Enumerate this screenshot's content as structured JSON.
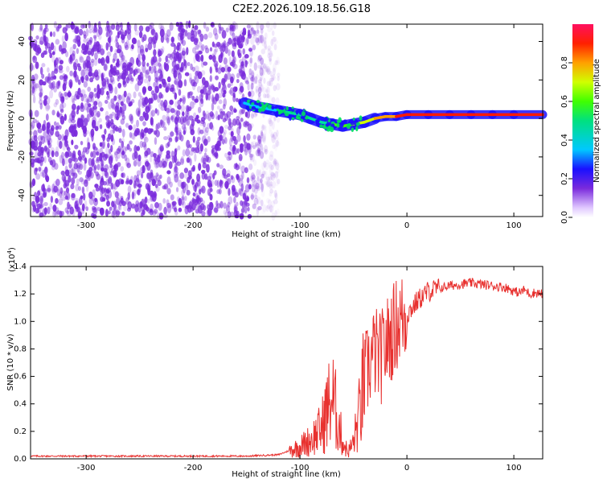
{
  "title": "C2E2.2026.109.18.56.G18",
  "colors": {
    "snr_line": "#e8312f",
    "scatter_purple": "#7a2bdc",
    "band_low": "#1a10ff",
    "band_high": "#ff0000"
  },
  "chart_data": [
    {
      "type": "heatmap",
      "name": "spectrogram",
      "xlabel": "Height of straight line (km)",
      "ylabel": "Frequency (Hz)",
      "xlim": [
        -352,
        127
      ],
      "ylim": [
        -51,
        49
      ],
      "x_ticks": [
        -300,
        -200,
        -100,
        0,
        100
      ],
      "y_ticks": [
        -40,
        -20,
        0,
        20,
        40
      ],
      "x_tick_labels": [
        "-300",
        "-200",
        "-100",
        "0",
        "100"
      ],
      "y_tick_labels": [
        "-40",
        "-20",
        "0",
        "20",
        "40"
      ],
      "noise_region_x": [
        -352,
        -135
      ],
      "signal_track": {
        "x": [
          -152,
          -140,
          -130,
          -120,
          -110,
          -100,
          -90,
          -80,
          -70,
          -60,
          -50,
          -40,
          -30,
          -20,
          -10,
          0,
          20,
          40,
          60,
          80,
          100,
          127
        ],
        "freq": [
          8,
          6,
          5,
          4,
          3,
          2,
          0,
          -2,
          -3,
          -4,
          -3,
          -2,
          0,
          1,
          1,
          2,
          2,
          2,
          2,
          2,
          2,
          2
        ],
        "amplitude": [
          0.3,
          0.35,
          0.35,
          0.4,
          0.4,
          0.45,
          0.45,
          0.4,
          0.5,
          0.55,
          0.6,
          0.65,
          0.75,
          0.8,
          0.85,
          0.95,
          0.95,
          0.95,
          0.95,
          0.9,
          0.95,
          0.9
        ]
      },
      "colorbar": {
        "label": "Normalized spectral amplitude",
        "range": [
          0,
          1
        ],
        "ticks": [
          "0.0",
          "0.2",
          "0.4",
          "0.6",
          "0.8"
        ]
      }
    },
    {
      "type": "line",
      "name": "snr",
      "xlabel": "Height of straight line (km)",
      "ylabel": "SNR (10 * v/v)",
      "exponent_label": "(x10",
      "exponent_value": "4",
      "xlim": [
        -352,
        127
      ],
      "ylim": [
        0,
        1.4
      ],
      "x_ticks": [
        -300,
        -200,
        -100,
        0,
        100
      ],
      "y_ticks": [
        0.0,
        0.2,
        0.4,
        0.6,
        0.8,
        1.0,
        1.2,
        1.4
      ],
      "x_tick_labels": [
        "-300",
        "-200",
        "-100",
        "0",
        "100"
      ],
      "y_tick_labels": [
        "0.0",
        "0.2",
        "0.4",
        "0.6",
        "0.8",
        "1.0",
        "1.2",
        "1.4"
      ],
      "series": [
        {
          "name": "SNR",
          "x": [
            -352,
            -300,
            -250,
            -200,
            -150,
            -120,
            -110,
            -100,
            -90,
            -80,
            -75,
            -70,
            -65,
            -60,
            -55,
            -50,
            -45,
            -40,
            -35,
            -30,
            -25,
            -20,
            -15,
            -10,
            -5,
            0,
            10,
            20,
            30,
            40,
            50,
            60,
            70,
            80,
            90,
            95,
            100,
            105,
            110,
            115,
            120,
            127
          ],
          "y": [
            0.02,
            0.02,
            0.02,
            0.02,
            0.02,
            0.03,
            0.06,
            0.09,
            0.14,
            0.22,
            0.35,
            0.45,
            0.3,
            0.12,
            0.05,
            0.12,
            0.3,
            0.55,
            0.7,
            0.78,
            0.72,
            0.82,
            0.9,
            0.98,
            1.02,
            1.05,
            1.15,
            1.22,
            1.24,
            1.26,
            1.27,
            1.28,
            1.27,
            1.26,
            1.25,
            1.24,
            1.22,
            1.21,
            1.23,
            1.2,
            1.21,
            1.2
          ]
        }
      ]
    }
  ]
}
